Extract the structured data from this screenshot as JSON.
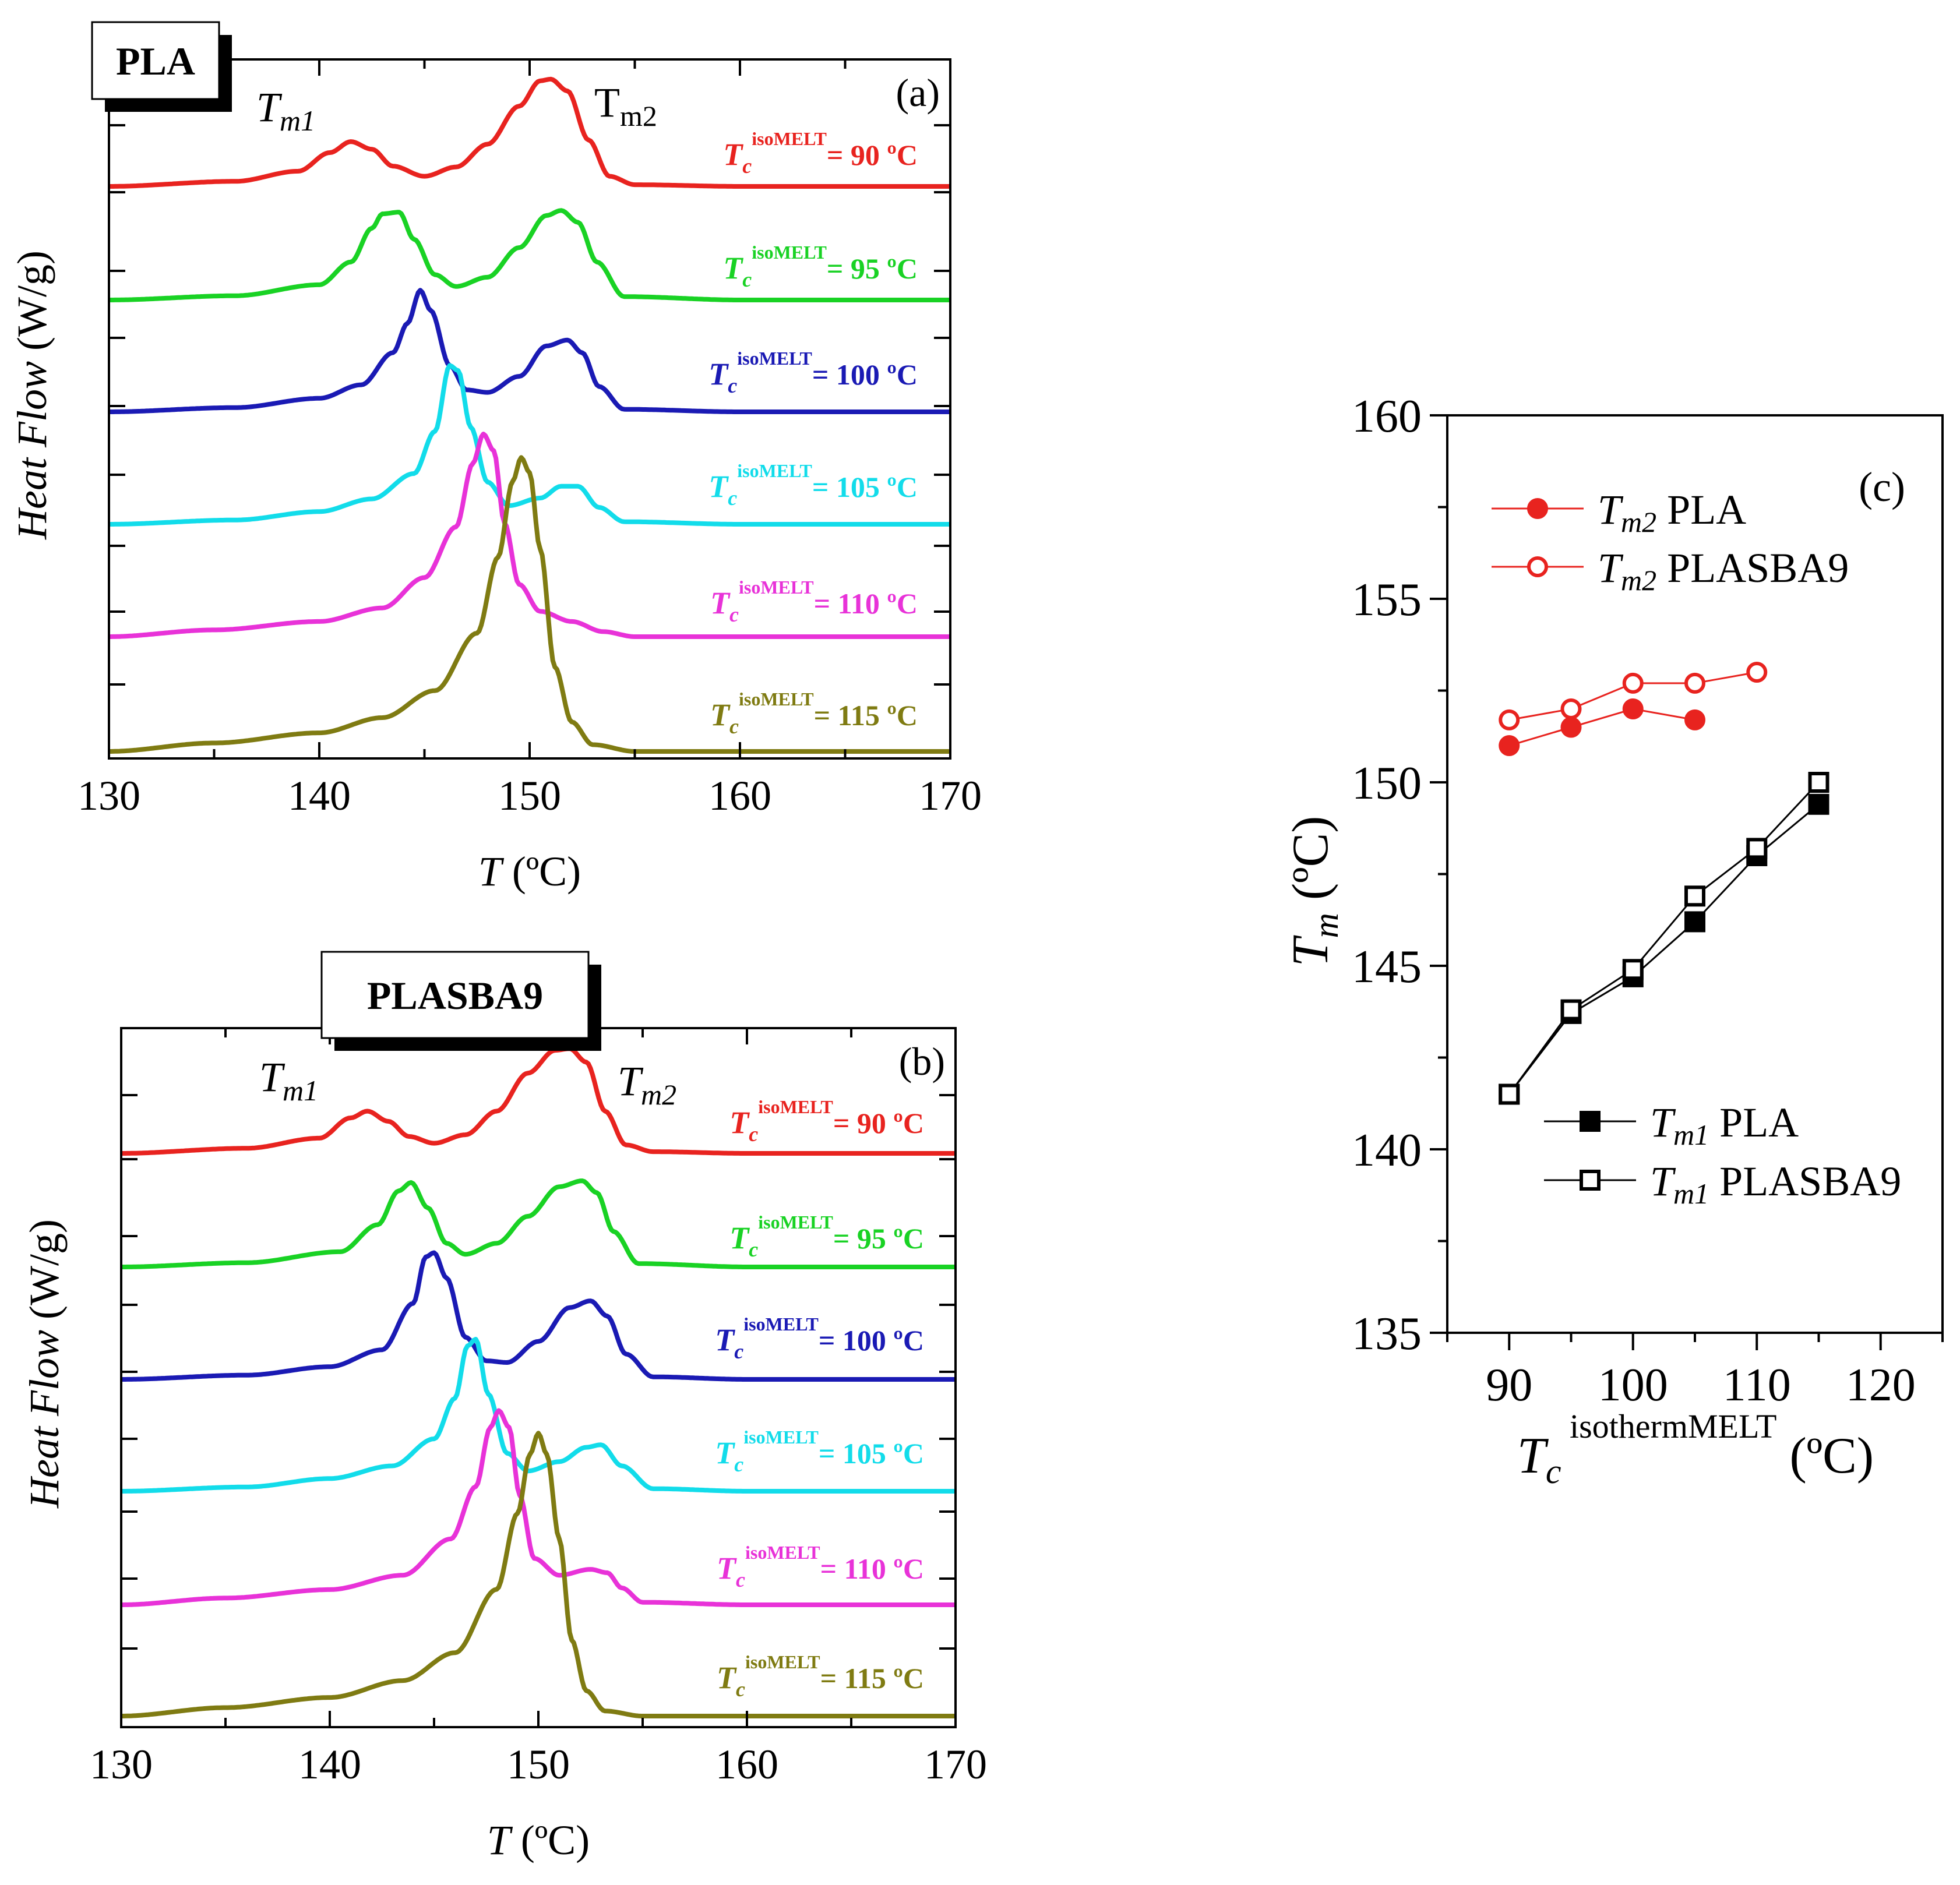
{
  "chart_data": [
    {
      "id": "a",
      "type": "line",
      "panel_label": "(a)",
      "sample_label": "PLA",
      "xlabel_var": "T",
      "xlabel_unit": "(ºC)",
      "ylabel_var": "Heat Flow",
      "ylabel_unit": "(W/g)",
      "xlim": [
        130,
        170
      ],
      "xticks": [
        130,
        140,
        150,
        160,
        170
      ],
      "peak_label_1": {
        "main": "T",
        "sub": "m1"
      },
      "peak_label_2": {
        "main": "T",
        "sub": "m2"
      },
      "series": [
        {
          "name": "90",
          "color": "#e8231f",
          "label_lead": "T",
          "label_sub": "c",
          "label_sup": "isoMELT",
          "label_value": "= 90 ºC",
          "x": [
            130,
            136,
            139,
            140.5,
            141.5,
            142.5,
            143.5,
            145,
            146.5,
            148,
            149.5,
            150.5,
            151,
            151.8,
            152.8,
            153.8,
            155,
            160,
            170
          ],
          "y": [
            0,
            0.06,
            0.18,
            0.4,
            0.53,
            0.44,
            0.24,
            0.12,
            0.23,
            0.5,
            0.95,
            1.25,
            1.27,
            1.13,
            0.55,
            0.12,
            0.02,
            0,
            0
          ]
        },
        {
          "name": "95",
          "color": "#19d224",
          "label_lead": "T",
          "label_sub": "c",
          "label_sup": "isoMELT",
          "label_value": "= 95 ºC",
          "x": [
            130,
            136,
            140,
            141.5,
            142.5,
            143,
            143.8,
            144.5,
            145.5,
            146.5,
            148,
            149.5,
            150.8,
            151.5,
            152.3,
            153.2,
            154.5,
            160,
            170
          ],
          "y": [
            0,
            0.05,
            0.18,
            0.45,
            0.85,
            1.02,
            1.04,
            0.72,
            0.3,
            0.16,
            0.27,
            0.62,
            1.0,
            1.06,
            0.92,
            0.45,
            0.04,
            0,
            0
          ]
        },
        {
          "name": "100",
          "color": "#1a1ab4",
          "label_lead": "T",
          "label_sub": "c",
          "label_sup": "isoMELT",
          "label_value": "= 100 ºC",
          "x": [
            130,
            136,
            140,
            142,
            143.5,
            144.2,
            144.8,
            145.3,
            146.2,
            147,
            148,
            149.5,
            150.8,
            151.8,
            152.5,
            153.3,
            154.5,
            160,
            170
          ],
          "y": [
            0,
            0.05,
            0.16,
            0.32,
            0.7,
            1.05,
            1.44,
            1.2,
            0.55,
            0.26,
            0.23,
            0.42,
            0.78,
            0.85,
            0.7,
            0.3,
            0.03,
            0,
            0
          ]
        },
        {
          "name": "105",
          "color": "#12dcea",
          "label_lead": "T",
          "label_sub": "c",
          "label_sup": "isoMELT",
          "label_value": "= 105 ºC",
          "x": [
            130,
            136,
            140,
            142.5,
            144.5,
            145.5,
            146.2,
            146.6,
            147.2,
            148,
            149,
            150.5,
            151.5,
            152.3,
            153.3,
            154.5,
            160,
            170
          ],
          "y": [
            0,
            0.05,
            0.15,
            0.3,
            0.6,
            1.1,
            1.88,
            1.82,
            1.15,
            0.5,
            0.22,
            0.31,
            0.45,
            0.45,
            0.2,
            0.03,
            0,
            0
          ]
        },
        {
          "name": "110",
          "color": "#e832d8",
          "label_lead": "T",
          "label_sub": "c",
          "label_sup": "isoMELT",
          "label_value": "= 110 ºC",
          "x": [
            130,
            135,
            140,
            143,
            145,
            146.5,
            147.3,
            147.8,
            148.3,
            148.8,
            149.5,
            150.5,
            152,
            153.5,
            155,
            160,
            170
          ],
          "y": [
            0,
            0.08,
            0.18,
            0.34,
            0.7,
            1.3,
            2.05,
            2.4,
            2.2,
            1.35,
            0.62,
            0.3,
            0.18,
            0.06,
            0,
            0,
            0
          ]
        },
        {
          "name": "115",
          "color": "#7f7b12",
          "label_lead": "T",
          "label_sub": "c",
          "label_sup": "isoMELT",
          "label_value": "= 115 ºC",
          "x": [
            130,
            135,
            140,
            143,
            145.5,
            147.5,
            148.5,
            149.2,
            149.6,
            150,
            150.5,
            151.2,
            152,
            153,
            155,
            160,
            170
          ],
          "y": [
            0,
            0.1,
            0.22,
            0.4,
            0.72,
            1.4,
            2.3,
            3.2,
            3.48,
            3.3,
            2.4,
            1.0,
            0.35,
            0.08,
            0,
            0,
            0
          ]
        }
      ]
    },
    {
      "id": "b",
      "type": "line",
      "panel_label": "(b)",
      "sample_label": "PLASBA9",
      "xlabel_var": "T",
      "xlabel_unit": "(ºC)",
      "ylabel_var": "Heat Flow",
      "ylabel_unit": "(W/g)",
      "xlim": [
        130,
        170
      ],
      "xticks": [
        130,
        140,
        150,
        160,
        170
      ],
      "peak_label_1": {
        "main": "T",
        "sub": "m1"
      },
      "peak_label_2": {
        "main": "T",
        "sub": "m2"
      },
      "series": [
        {
          "name": "90",
          "color": "#e8231f",
          "label_lead": "T",
          "label_sub": "c",
          "label_sup": "isoMELT",
          "label_value": "= 90 ºC",
          "x": [
            130,
            136,
            139.5,
            141,
            141.8,
            142.8,
            143.8,
            145,
            146.5,
            148,
            149.5,
            150.8,
            151.5,
            152.3,
            153.2,
            154.2,
            155.5,
            160,
            170
          ],
          "y": [
            0,
            0.06,
            0.18,
            0.42,
            0.5,
            0.38,
            0.2,
            0.12,
            0.22,
            0.5,
            0.95,
            1.22,
            1.24,
            1.08,
            0.5,
            0.1,
            0.02,
            0,
            0
          ]
        },
        {
          "name": "95",
          "color": "#19d224",
          "label_lead": "T",
          "label_sub": "c",
          "label_sup": "isoMELT",
          "label_value": "= 95 ºC",
          "x": [
            130,
            136,
            140.5,
            142.3,
            143.3,
            143.9,
            144.7,
            145.6,
            146.5,
            148,
            149.5,
            151,
            152.1,
            152.8,
            153.6,
            154.8,
            160,
            170
          ],
          "y": [
            0,
            0.05,
            0.18,
            0.5,
            0.9,
            1.0,
            0.7,
            0.28,
            0.15,
            0.28,
            0.6,
            0.95,
            1.02,
            0.88,
            0.42,
            0.04,
            0,
            0
          ]
        },
        {
          "name": "100",
          "color": "#1a1ab4",
          "label_lead": "T",
          "label_sub": "c",
          "label_sup": "isoMELT",
          "label_value": "= 100 ºC",
          "x": [
            130,
            136,
            140,
            142.5,
            144,
            144.6,
            145,
            145.6,
            146.5,
            147.5,
            148.5,
            150,
            151.5,
            152.5,
            153.3,
            154.2,
            155.5,
            160,
            170
          ],
          "y": [
            0,
            0.05,
            0.15,
            0.35,
            0.9,
            1.45,
            1.5,
            1.2,
            0.5,
            0.22,
            0.2,
            0.45,
            0.85,
            0.93,
            0.75,
            0.3,
            0.03,
            0,
            0
          ]
        },
        {
          "name": "105",
          "color": "#12dcea",
          "label_lead": "T",
          "label_sub": "c",
          "label_sup": "isoMELT",
          "label_value": "= 105 ºC",
          "x": [
            130,
            136,
            140,
            143,
            145,
            146,
            146.6,
            147,
            147.6,
            148.5,
            149.5,
            151,
            152.3,
            153,
            154,
            155.5,
            160,
            170
          ],
          "y": [
            0,
            0.05,
            0.15,
            0.3,
            0.62,
            1.1,
            1.72,
            1.8,
            1.15,
            0.45,
            0.24,
            0.35,
            0.52,
            0.55,
            0.3,
            0.03,
            0,
            0
          ]
        },
        {
          "name": "110",
          "color": "#e832d8",
          "label_lead": "T",
          "label_sub": "c",
          "label_sup": "isoMELT",
          "label_value": "= 110 ºC",
          "x": [
            130,
            135,
            140,
            143.5,
            145.8,
            147,
            147.7,
            148.1,
            148.6,
            149.1,
            149.8,
            151,
            152.5,
            153.3,
            154,
            155,
            160,
            170
          ],
          "y": [
            0,
            0.08,
            0.18,
            0.35,
            0.78,
            1.4,
            2.1,
            2.3,
            2.1,
            1.3,
            0.55,
            0.35,
            0.42,
            0.38,
            0.2,
            0.03,
            0,
            0
          ]
        },
        {
          "name": "115",
          "color": "#7f7b12",
          "label_lead": "T",
          "label_sub": "c",
          "label_sup": "isoMELT",
          "label_value": "= 115 ºC",
          "x": [
            130,
            135,
            140,
            143.5,
            146,
            148,
            149,
            149.6,
            150,
            150.4,
            151,
            151.6,
            152.3,
            153.2,
            155,
            160,
            170
          ],
          "y": [
            0,
            0.1,
            0.22,
            0.42,
            0.75,
            1.5,
            2.4,
            3.1,
            3.35,
            3.1,
            2.1,
            0.9,
            0.3,
            0.06,
            0,
            0,
            0
          ]
        }
      ]
    },
    {
      "id": "c",
      "type": "scatter",
      "panel_label": "(c)",
      "xlabel_main": "T",
      "xlabel_sub": "c",
      "xlabel_sup": "isothermMELT",
      "xlabel_unit": "(ºC)",
      "ylabel_main": "T",
      "ylabel_sub": "m",
      "ylabel_unit": "(ºC)",
      "xlim": [
        85,
        125
      ],
      "ylim": [
        135,
        160
      ],
      "xticks": [
        90,
        100,
        110,
        120
      ],
      "yticks": [
        135,
        140,
        145,
        150,
        155,
        160
      ],
      "series": [
        {
          "name": "Tm2 PLA",
          "legend_main": "T",
          "legend_sub": "m2",
          "legend_text": "PLA",
          "color": "#e8231f",
          "marker": "circle",
          "filled": true,
          "x": [
            90,
            95,
            100,
            105
          ],
          "y": [
            151.0,
            151.5,
            152.0,
            151.7
          ]
        },
        {
          "name": "Tm2 PLASBA9",
          "legend_main": "T",
          "legend_sub": "m2",
          "legend_text": "PLASBA9",
          "color": "#e8231f",
          "marker": "circle",
          "filled": false,
          "x": [
            90,
            95,
            100,
            105,
            110
          ],
          "y": [
            151.7,
            152.0,
            152.7,
            152.7,
            153.0
          ]
        },
        {
          "name": "Tm1 PLA",
          "legend_main": "T",
          "legend_sub": "m1",
          "legend_text": "PLA",
          "color": "#000000",
          "marker": "square",
          "filled": true,
          "x": [
            90,
            95,
            100,
            105,
            110,
            115
          ],
          "y": [
            141.5,
            143.7,
            144.7,
            146.2,
            148.0,
            149.4
          ]
        },
        {
          "name": "Tm1 PLASBA9",
          "legend_main": "T",
          "legend_sub": "m1",
          "legend_text": "PLASBA9",
          "color": "#000000",
          "marker": "square",
          "filled": false,
          "x": [
            90,
            95,
            100,
            105,
            110,
            115
          ],
          "y": [
            141.5,
            143.8,
            144.9,
            146.9,
            148.2,
            150.0
          ]
        }
      ]
    }
  ]
}
